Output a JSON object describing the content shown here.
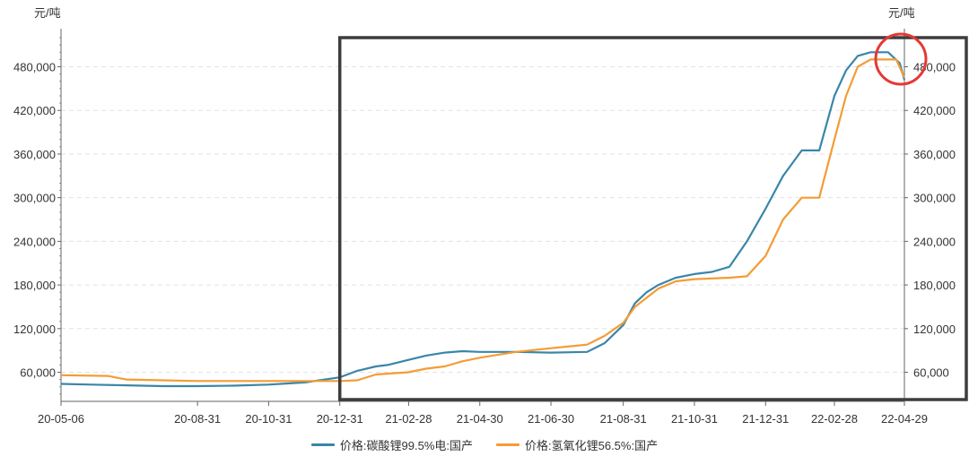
{
  "chart_data": {
    "type": "line",
    "y_unit_left": "元/吨",
    "y_unit_right": "元/吨",
    "x_ticks": [
      "20-05-06",
      "20-08-31",
      "20-10-31",
      "20-12-31",
      "21-02-28",
      "21-04-30",
      "21-06-30",
      "21-08-31",
      "21-10-31",
      "21-12-31",
      "22-02-28",
      "22-04-29"
    ],
    "y_ticks": [
      60000,
      120000,
      180000,
      240000,
      300000,
      360000,
      420000,
      480000
    ],
    "y_tick_labels": [
      "60,000",
      "120,000",
      "180,000",
      "240,000",
      "300,000",
      "360,000",
      "420,000",
      "480,000"
    ],
    "ylim": [
      20000,
      525000
    ],
    "grid": "horizontal-dashed",
    "legend_position": "bottom-center",
    "series": [
      {
        "name": "价格:碳酸锂99.5%电:国产",
        "color": "#3a86a8",
        "points": [
          [
            "2020-05-06",
            44000
          ],
          [
            "2020-06-01",
            43000
          ],
          [
            "2020-07-01",
            42000
          ],
          [
            "2020-08-01",
            41000
          ],
          [
            "2020-08-31",
            41000
          ],
          [
            "2020-10-01",
            41500
          ],
          [
            "2020-10-31",
            43000
          ],
          [
            "2020-12-01",
            46000
          ],
          [
            "2020-12-31",
            53000
          ],
          [
            "2021-01-15",
            62000
          ],
          [
            "2021-01-31",
            68000
          ],
          [
            "2021-02-10",
            70000
          ],
          [
            "2021-02-28",
            77000
          ],
          [
            "2021-03-15",
            83000
          ],
          [
            "2021-03-31",
            87000
          ],
          [
            "2021-04-15",
            89000
          ],
          [
            "2021-04-30",
            88000
          ],
          [
            "2021-05-31",
            88000
          ],
          [
            "2021-06-30",
            87000
          ],
          [
            "2021-07-31",
            88000
          ],
          [
            "2021-08-15",
            100000
          ],
          [
            "2021-08-31",
            125000
          ],
          [
            "2021-09-10",
            155000
          ],
          [
            "2021-09-20",
            170000
          ],
          [
            "2021-09-30",
            180000
          ],
          [
            "2021-10-15",
            190000
          ],
          [
            "2021-10-31",
            195000
          ],
          [
            "2021-11-15",
            198000
          ],
          [
            "2021-11-30",
            205000
          ],
          [
            "2021-12-15",
            240000
          ],
          [
            "2021-12-31",
            285000
          ],
          [
            "2022-01-15",
            330000
          ],
          [
            "2022-01-31",
            365000
          ],
          [
            "2022-02-15",
            365000
          ],
          [
            "2022-02-28",
            440000
          ],
          [
            "2022-03-10",
            475000
          ],
          [
            "2022-03-20",
            495000
          ],
          [
            "2022-03-31",
            500000
          ],
          [
            "2022-04-15",
            500000
          ],
          [
            "2022-04-25",
            485000
          ],
          [
            "2022-04-29",
            462000
          ]
        ]
      },
      {
        "name": "价格:氢氧化锂56.5%:国产",
        "color": "#f39c35",
        "points": [
          [
            "2020-05-06",
            56000
          ],
          [
            "2020-06-15",
            55000
          ],
          [
            "2020-07-01",
            50000
          ],
          [
            "2020-08-31",
            48000
          ],
          [
            "2020-10-31",
            48000
          ],
          [
            "2020-12-31",
            48000
          ],
          [
            "2021-01-15",
            49000
          ],
          [
            "2021-01-31",
            57000
          ],
          [
            "2021-02-28",
            60000
          ],
          [
            "2021-03-15",
            65000
          ],
          [
            "2021-03-31",
            68000
          ],
          [
            "2021-04-15",
            75000
          ],
          [
            "2021-04-30",
            80000
          ],
          [
            "2021-05-31",
            88000
          ],
          [
            "2021-06-30",
            93000
          ],
          [
            "2021-07-31",
            98000
          ],
          [
            "2021-08-15",
            110000
          ],
          [
            "2021-08-31",
            128000
          ],
          [
            "2021-09-10",
            150000
          ],
          [
            "2021-09-30",
            175000
          ],
          [
            "2021-10-15",
            185000
          ],
          [
            "2021-10-31",
            188000
          ],
          [
            "2021-11-30",
            190000
          ],
          [
            "2021-12-15",
            192000
          ],
          [
            "2021-12-31",
            220000
          ],
          [
            "2022-01-15",
            270000
          ],
          [
            "2022-01-31",
            300000
          ],
          [
            "2022-02-15",
            300000
          ],
          [
            "2022-02-28",
            380000
          ],
          [
            "2022-03-10",
            440000
          ],
          [
            "2022-03-20",
            480000
          ],
          [
            "2022-03-31",
            490000
          ],
          [
            "2022-04-15",
            490000
          ],
          [
            "2022-04-22",
            490000
          ],
          [
            "2022-04-29",
            465000
          ]
        ]
      }
    ],
    "annotations": [
      {
        "type": "rectangle",
        "from": "2020-12-31",
        "to": "2022-04-29",
        "color": "#3d3d3d"
      },
      {
        "type": "circle",
        "around": "2022-04-29",
        "color": "#e53935"
      }
    ]
  }
}
